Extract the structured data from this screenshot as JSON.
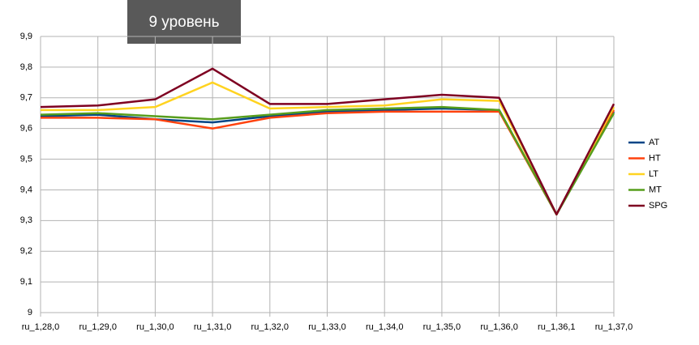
{
  "chart_data": {
    "type": "line",
    "title": "9 уровень",
    "categories": [
      "ru_1,28,0",
      "ru_1,29,0",
      "ru_1,30,0",
      "ru_1,31,0",
      "ru_1,32,0",
      "ru_1,33,0",
      "ru_1,34,0",
      "ru_1,35,0",
      "ru_1,36,0",
      "ru_1,36,1",
      "ru_1,37,0"
    ],
    "series": [
      {
        "name": "AT",
        "color": "#004586",
        "values": [
          9.64,
          9.645,
          9.63,
          9.62,
          9.64,
          9.655,
          9.66,
          9.665,
          9.66,
          9.32,
          9.655
        ]
      },
      {
        "name": "HT",
        "color": "#ff420e",
        "values": [
          9.635,
          9.635,
          9.63,
          9.6,
          9.635,
          9.65,
          9.655,
          9.655,
          9.655,
          9.32,
          9.66
        ]
      },
      {
        "name": "LT",
        "color": "#ffd320",
        "values": [
          9.66,
          9.66,
          9.67,
          9.75,
          9.665,
          9.67,
          9.675,
          9.695,
          9.69,
          9.32,
          9.67
        ]
      },
      {
        "name": "MT",
        "color": "#579d1c",
        "values": [
          9.645,
          9.65,
          9.64,
          9.63,
          9.645,
          9.66,
          9.665,
          9.67,
          9.66,
          9.32,
          9.65
        ]
      },
      {
        "name": "SPG",
        "color": "#7e0021",
        "values": [
          9.67,
          9.675,
          9.695,
          9.795,
          9.68,
          9.68,
          9.695,
          9.71,
          9.7,
          9.32,
          9.68
        ]
      }
    ],
    "ylim": [
      9,
      9.9
    ],
    "yticks": [
      9,
      {
        "value": 9.1,
        "label": "9,1"
      },
      {
        "value": 9.2,
        "label": "9,2"
      },
      {
        "value": 9.3,
        "label": "9,3"
      },
      {
        "value": 9.4,
        "label": "9,4"
      },
      {
        "value": 9.5,
        "label": "9,5"
      },
      {
        "value": 9.6,
        "label": "9,6"
      },
      {
        "value": 9.7,
        "label": "9,7"
      },
      {
        "value": 9.8,
        "label": "9,8"
      },
      {
        "value": 9.9,
        "label": "9,9"
      }
    ],
    "grid": true,
    "legend": "right"
  }
}
